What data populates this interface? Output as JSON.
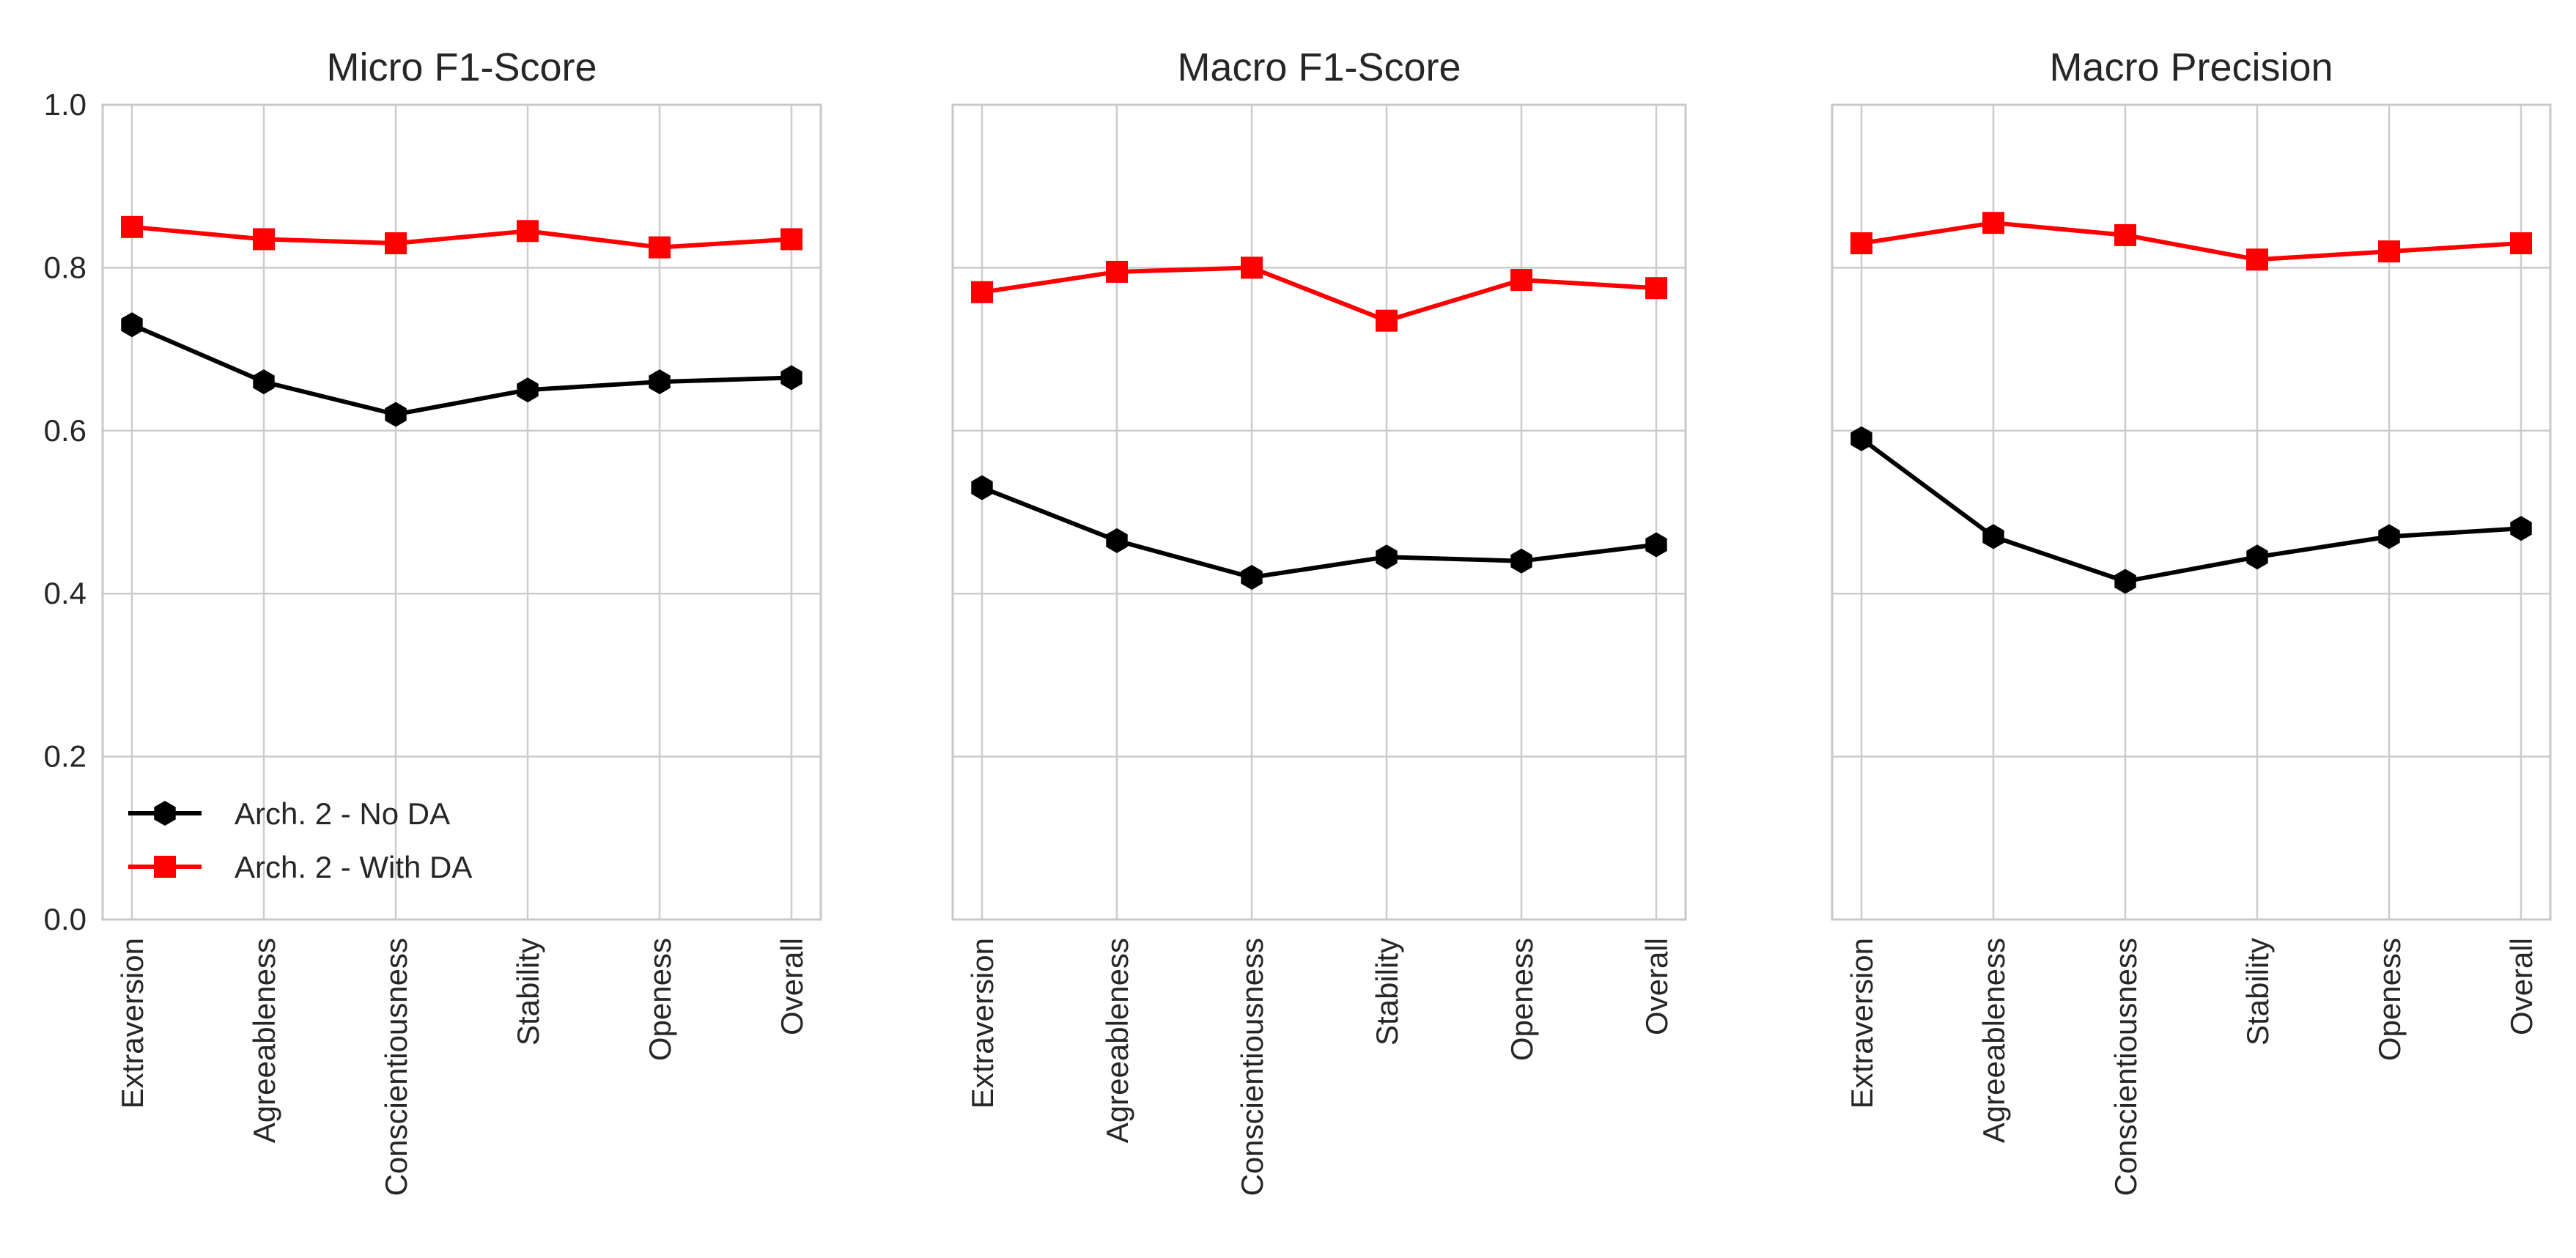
{
  "chart_data": [
    {
      "type": "line",
      "title": "Micro F1-Score",
      "categories": [
        "Extraversion",
        "Agreeableness",
        "Conscientiousness",
        "Stability",
        "Openess",
        "Overall"
      ],
      "ylim": [
        0,
        1.0
      ],
      "yticks": [
        "0.0",
        "0.2",
        "0.4",
        "0.6",
        "0.8",
        "1.0"
      ],
      "show_yticks": true,
      "grid": true,
      "legend": "lower-left",
      "series": [
        {
          "name": "Arch. 2 - No DA",
          "color": "#000000",
          "marker": "hexagon",
          "values": [
            0.73,
            0.66,
            0.62,
            0.65,
            0.66,
            0.665
          ]
        },
        {
          "name": "Arch. 2 - With DA",
          "color": "#ff0000",
          "marker": "square",
          "values": [
            0.85,
            0.835,
            0.83,
            0.845,
            0.825,
            0.835
          ]
        }
      ]
    },
    {
      "type": "line",
      "title": "Macro F1-Score",
      "categories": [
        "Extraversion",
        "Agreeableness",
        "Conscientiousness",
        "Stability",
        "Openess",
        "Overall"
      ],
      "ylim": [
        0,
        1.0
      ],
      "yticks": [
        "0.0",
        "0.2",
        "0.4",
        "0.6",
        "0.8",
        "1.0"
      ],
      "show_yticks": false,
      "grid": true,
      "series": [
        {
          "name": "Arch. 2 - No DA",
          "color": "#000000",
          "marker": "hexagon",
          "values": [
            0.53,
            0.465,
            0.42,
            0.445,
            0.44,
            0.46
          ]
        },
        {
          "name": "Arch. 2 - With DA",
          "color": "#ff0000",
          "marker": "square",
          "values": [
            0.77,
            0.795,
            0.8,
            0.735,
            0.785,
            0.775
          ]
        }
      ]
    },
    {
      "type": "line",
      "title": "Macro Precision",
      "categories": [
        "Extraversion",
        "Agreeableness",
        "Conscientiousness",
        "Stability",
        "Openess",
        "Overall"
      ],
      "ylim": [
        0,
        1.0
      ],
      "yticks": [
        "0.0",
        "0.2",
        "0.4",
        "0.6",
        "0.8",
        "1.0"
      ],
      "show_yticks": false,
      "grid": true,
      "series": [
        {
          "name": "Arch. 2 - No DA",
          "color": "#000000",
          "marker": "hexagon",
          "values": [
            0.59,
            0.47,
            0.415,
            0.445,
            0.47,
            0.48
          ]
        },
        {
          "name": "Arch. 2 - With DA",
          "color": "#ff0000",
          "marker": "square",
          "values": [
            0.83,
            0.855,
            0.84,
            0.81,
            0.82,
            0.83
          ]
        }
      ]
    }
  ]
}
